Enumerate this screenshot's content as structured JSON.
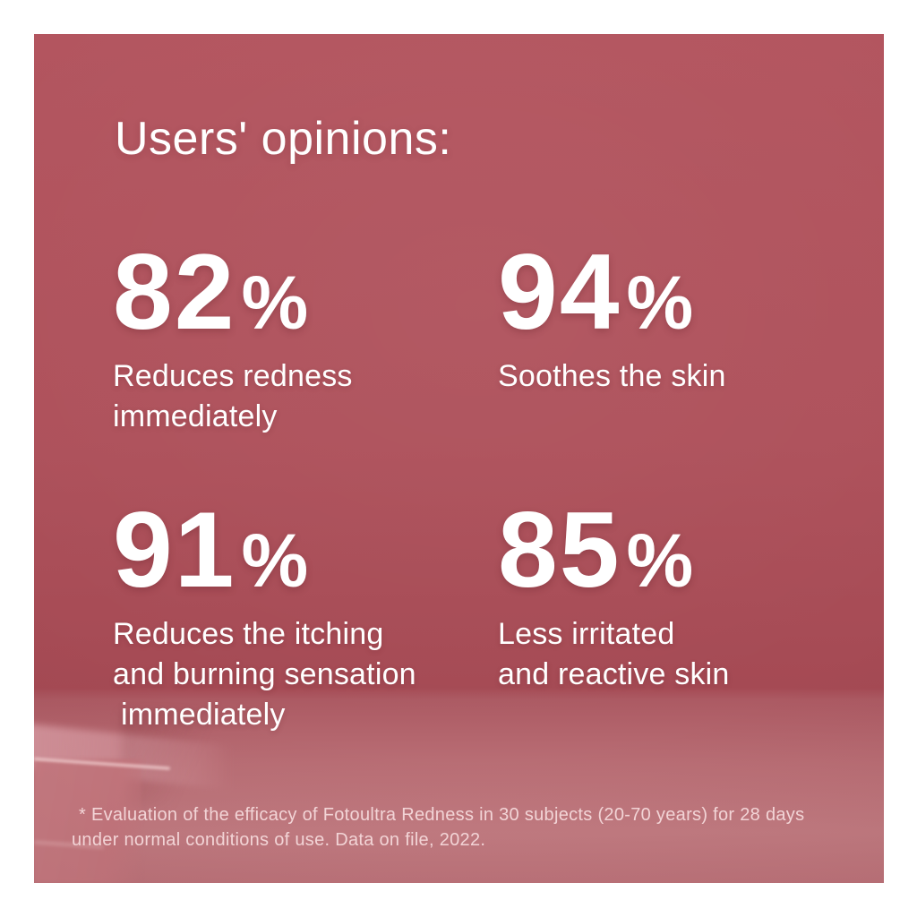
{
  "title": "Users' opinions:",
  "stats": [
    {
      "value": "82",
      "unit": "%",
      "lines": [
        "Reduces redness",
        "immediately"
      ]
    },
    {
      "value": "94",
      "unit": "%",
      "lines": [
        "Soothes the skin"
      ]
    },
    {
      "value": "91",
      "unit": "%",
      "lines": [
        "Reduces the itching",
        "and burning sensation",
        "immediately"
      ]
    },
    {
      "value": "85",
      "unit": "%",
      "lines": [
        "Less irritated",
        "and reactive skin"
      ]
    }
  ],
  "footnote": {
    "line1": "* Evaluation of the efficacy of Fotoultra Redness in 30 subjects (20-70 years) for 28 days",
    "line2": "under normal conditions of use. Data on file, 2022."
  },
  "colors": {
    "frame_background": "#ffffff",
    "wall_top": "#b3555f",
    "wall_mid": "#ae515b",
    "wall_bottom": "#a54a54",
    "floor_top": "#ac5a63",
    "floor_mid": "#b96e75",
    "floor_light": "#c17b81",
    "floor_bottom": "#bc737a",
    "podium_front": "#c67b82",
    "podium_top_face": "#d2929a",
    "podium_edge_highlight": "#ffe4e4",
    "text": "#ffffff",
    "footnote_text": "#f2d4d6"
  }
}
